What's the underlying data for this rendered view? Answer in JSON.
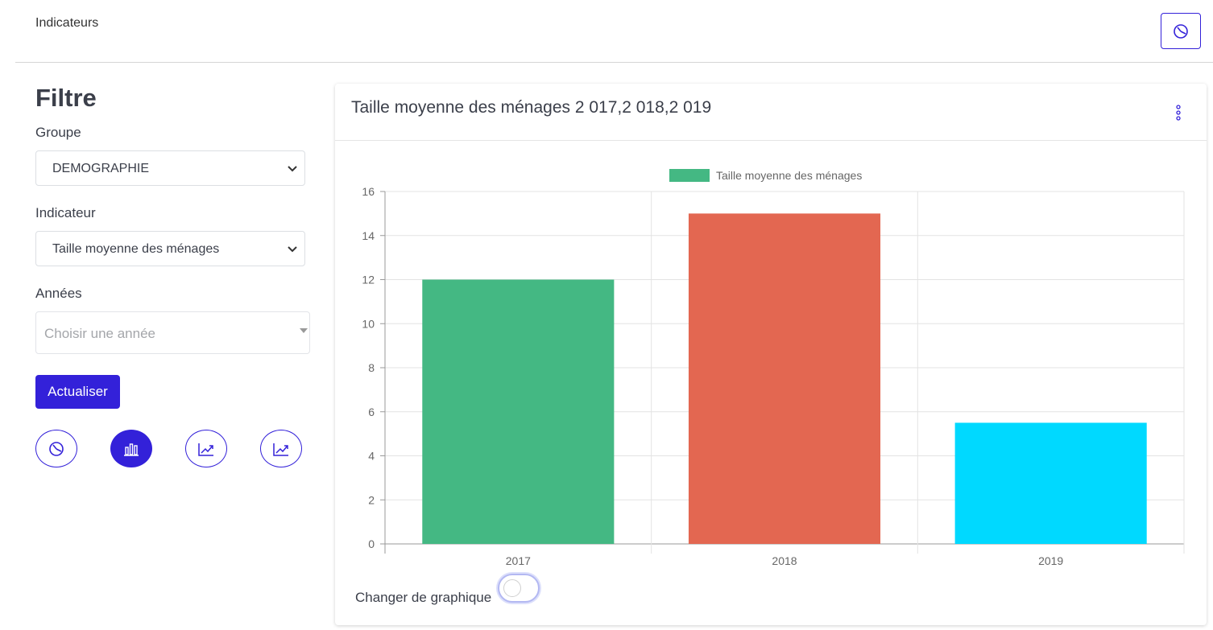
{
  "header": {
    "title": "Indicateurs",
    "pie_button_icon": "pie-chart-icon"
  },
  "filter": {
    "title": "Filtre",
    "group_label": "Groupe",
    "group_value": "DEMOGRAPHIE",
    "indicator_label": "Indicateur",
    "indicator_value": "Taille moyenne des ménages",
    "years_label": "Années",
    "years_placeholder": "Choisir une année",
    "refresh_label": "Actualiser",
    "chart_type_buttons": [
      {
        "icon": "pie-chart-icon",
        "active": false
      },
      {
        "icon": "bar-chart-icon",
        "active": true
      },
      {
        "icon": "line-chart-icon",
        "active": false
      },
      {
        "icon": "line-chart-icon",
        "active": false
      }
    ]
  },
  "card": {
    "title": "Taille moyenne des ménages 2 017,2 018,2 019",
    "toggle_label": "Changer de graphique",
    "toggle_on": false
  },
  "colors": {
    "accent": "#3321d9",
    "bar_2017": "#44b883",
    "bar_2018": "#e36751",
    "bar_2019": "#00d9ff"
  },
  "chart_data": {
    "type": "bar",
    "categories": [
      "2017",
      "2018",
      "2019"
    ],
    "series": [
      {
        "name": "Taille moyenne des ménages",
        "values": [
          12,
          15,
          5.5
        ]
      }
    ],
    "colors": [
      "#44b883",
      "#e36751",
      "#00d9ff"
    ],
    "ylim": [
      0,
      16
    ],
    "yticks": [
      0,
      2,
      4,
      6,
      8,
      10,
      12,
      14,
      16
    ],
    "grid": true,
    "legend": "top"
  }
}
